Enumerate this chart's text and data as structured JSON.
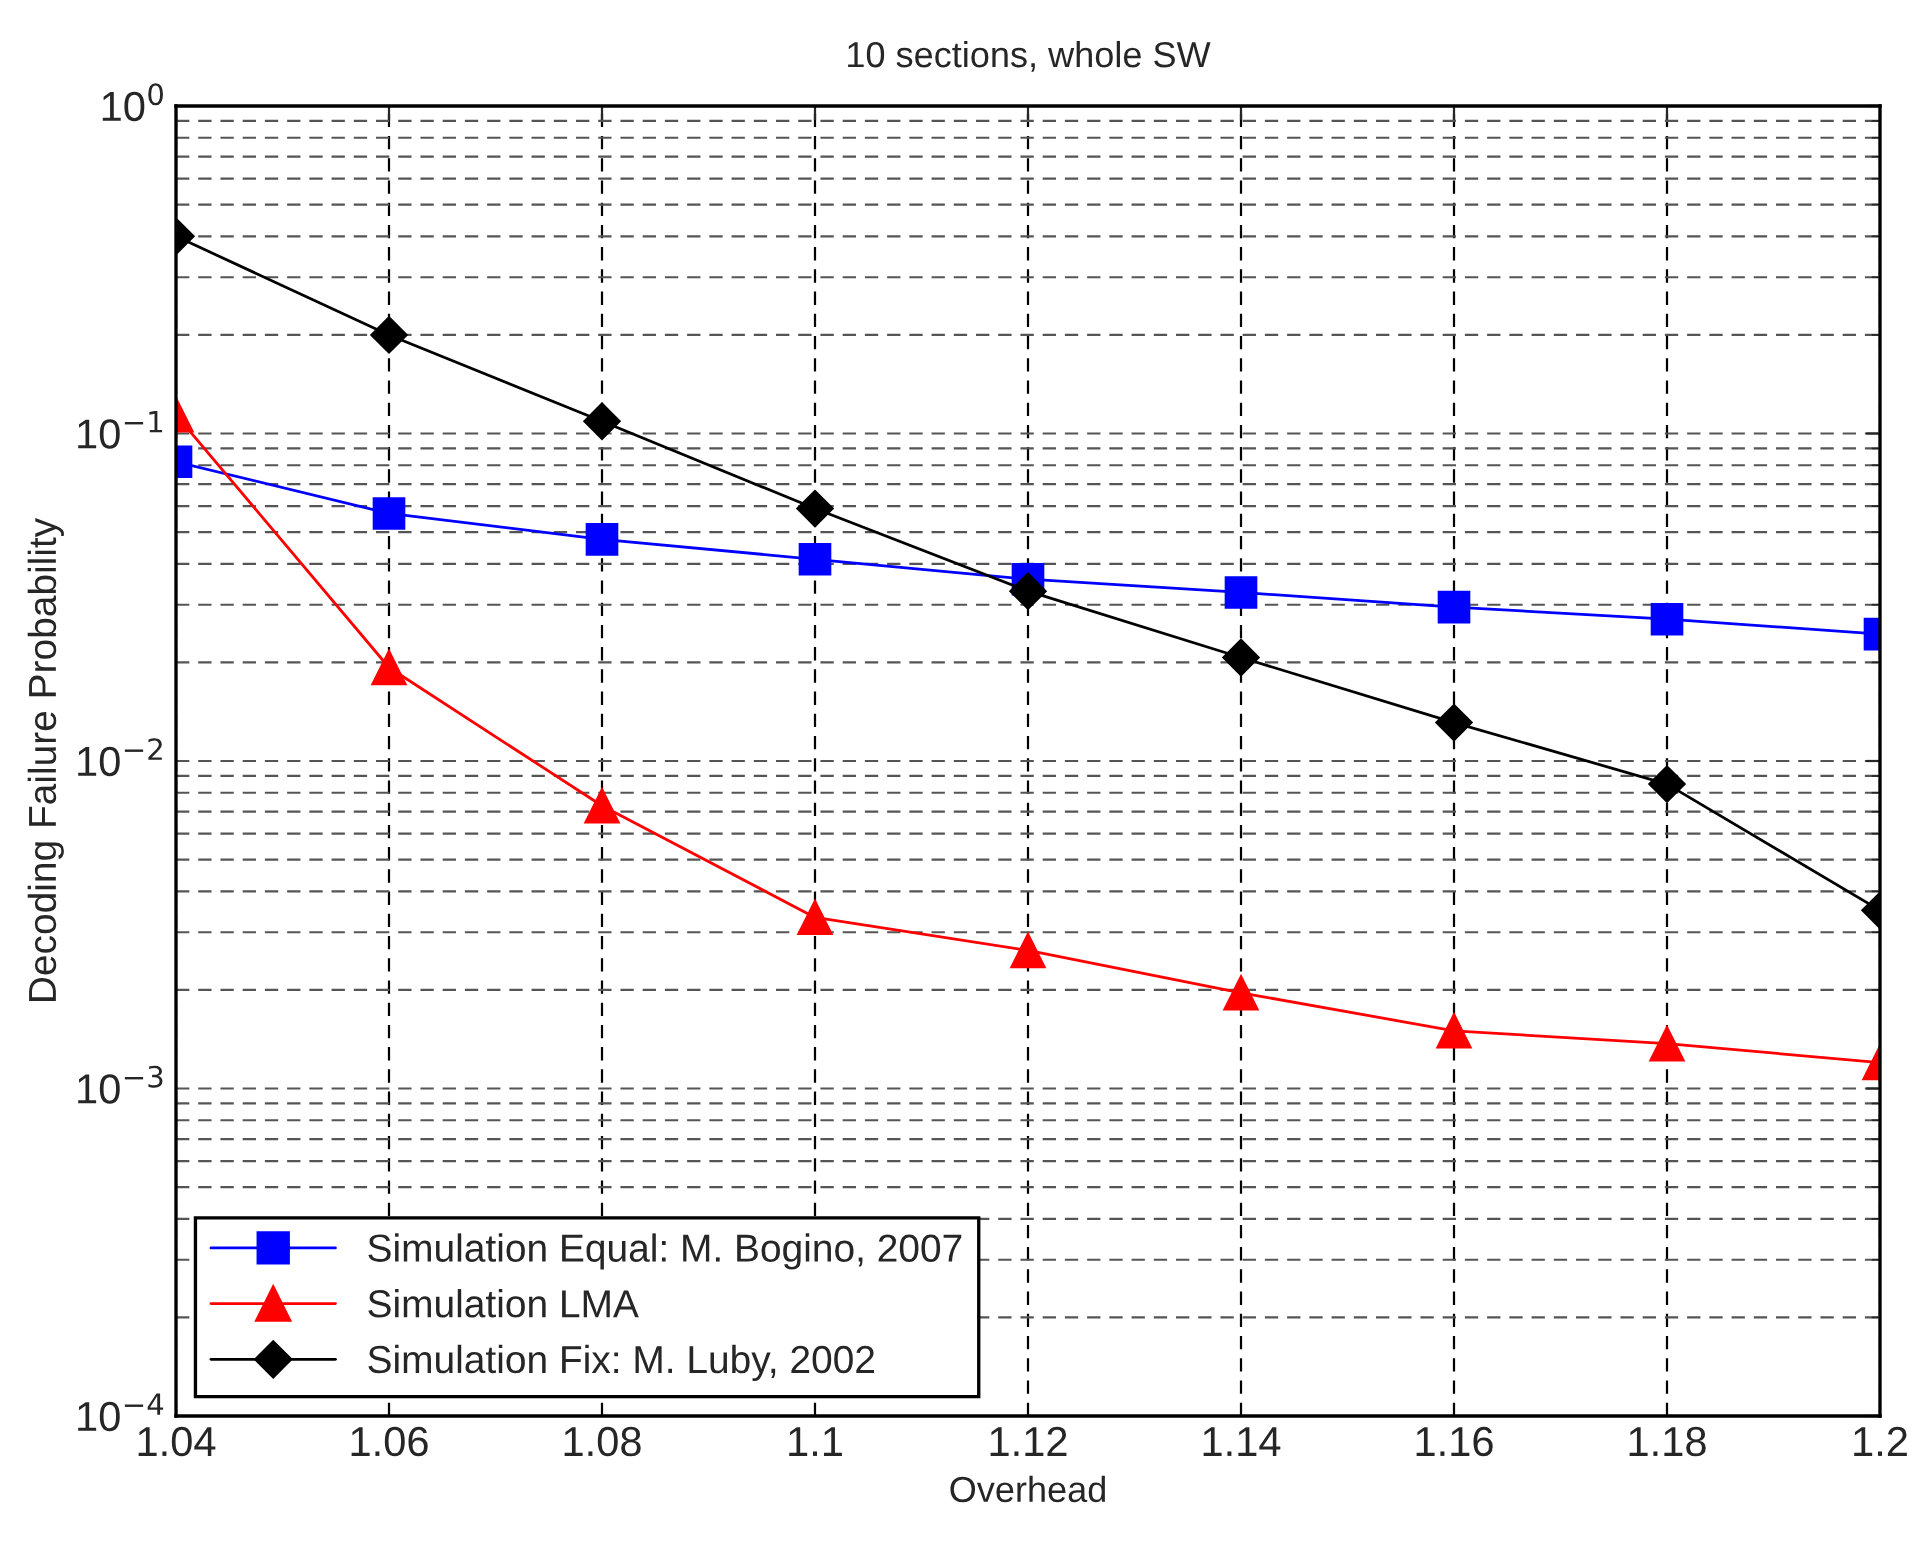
{
  "chart_data": {
    "type": "line",
    "title": "10 sections, whole SW",
    "xlabel": "Overhead",
    "ylabel": "Decoding Failure Probability",
    "x": [
      1.04,
      1.06,
      1.08,
      1.1,
      1.12,
      1.14,
      1.16,
      1.18,
      1.2
    ],
    "series": [
      {
        "name": "Simulation Equal: M. Bogino, 2007",
        "color": "#0000ff",
        "marker": "square",
        "values": [
          0.082,
          0.057,
          0.0475,
          0.0413,
          0.0359,
          0.0327,
          0.0295,
          0.0271,
          0.0244
        ]
      },
      {
        "name": "Simulation LMA",
        "color": "#ff0000",
        "marker": "triangle",
        "values": [
          0.114,
          0.0193,
          0.0073,
          0.00333,
          0.00264,
          0.00196,
          0.0015,
          0.00137,
          0.0012
        ]
      },
      {
        "name": "Simulation Fix: M. Luby, 2002",
        "color": "#000000",
        "marker": "diamond",
        "values": [
          0.4,
          0.2,
          0.109,
          0.059,
          0.033,
          0.0207,
          0.0131,
          0.0085,
          0.0035
        ]
      }
    ],
    "log": "y",
    "xlim": [
      1.04,
      1.2
    ],
    "xticks": [
      1.04,
      1.06,
      1.08,
      1.1,
      1.12,
      1.14,
      1.16,
      1.18,
      1.2
    ],
    "ylim": [
      0.0001,
      1
    ],
    "yticks": [
      {
        "value": 0.0001,
        "label": "10$^{−4}$"
      },
      {
        "value": 0.001,
        "label": "10$^{−3}$"
      },
      {
        "value": 0.01,
        "label": "10$^{−2}$"
      },
      {
        "value": 0.1,
        "label": "10$^{−1}$"
      },
      {
        "value": 1,
        "label": "10$^{0}$"
      }
    ],
    "grid": true,
    "legend": "bottom left",
    "line_style": "solid"
  }
}
